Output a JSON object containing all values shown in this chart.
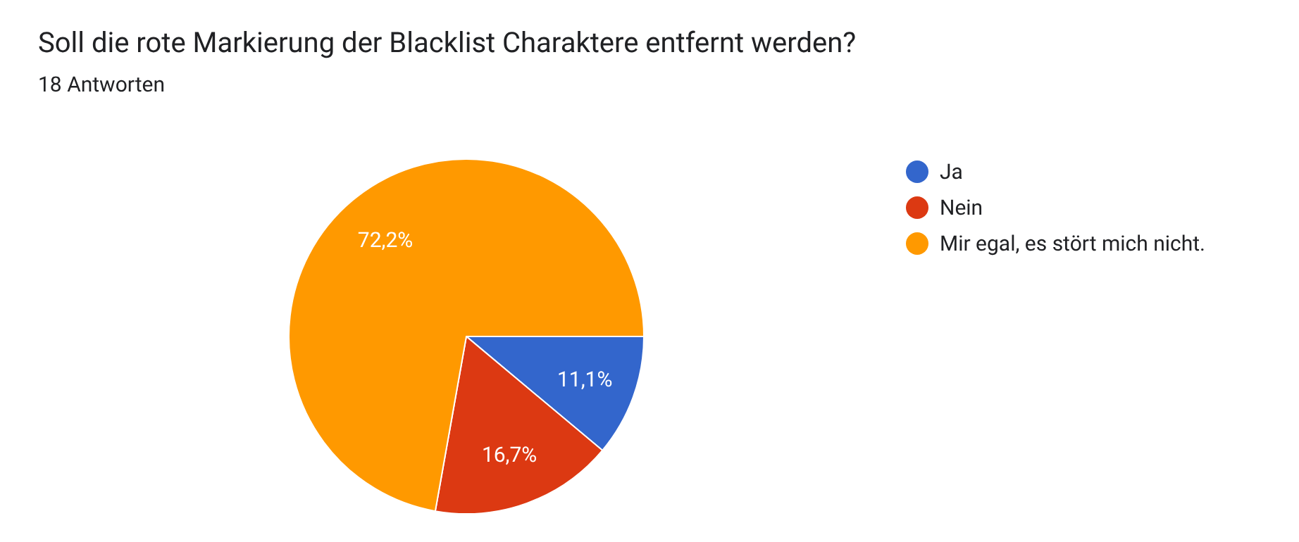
{
  "chart_data": {
    "type": "pie",
    "title": "Soll die rote Markierung der Blacklist Charaktere entfernt werden?",
    "subtitle": "18 Antworten",
    "categories": [
      "Ja",
      "Nein",
      "Mir egal, es stört mich nicht."
    ],
    "values": [
      11.1,
      16.7,
      72.2
    ],
    "colors": [
      "#3366cc",
      "#dc3912",
      "#ff9900"
    ],
    "value_labels": [
      "11,1%",
      "16,7%",
      "72,2%"
    ],
    "legend": "right"
  }
}
